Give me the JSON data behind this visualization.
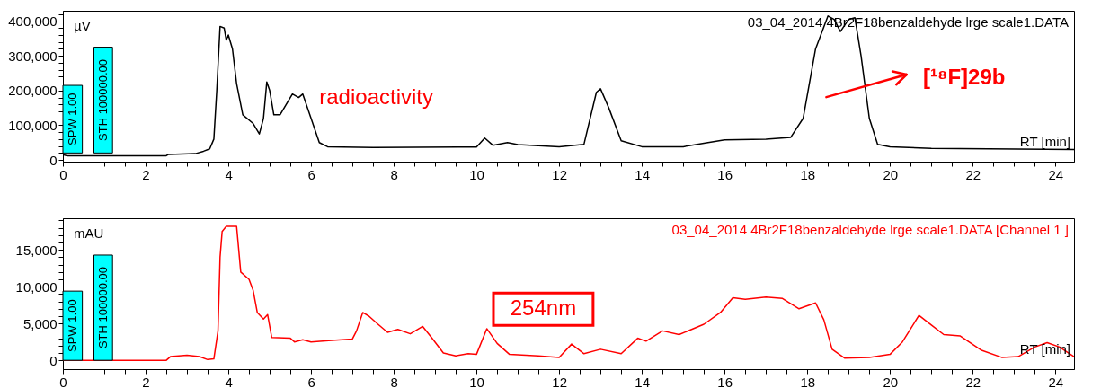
{
  "chart_data": [
    {
      "type": "line",
      "title": "03_04_2014 4Br2F18benzaldehyde lrge scale1.DATA",
      "xlabel": "RT [min]",
      "ylabel": "µV",
      "x": [
        0,
        0.1,
        2.5,
        2.55,
        3.2,
        3.4,
        3.55,
        3.65,
        3.72,
        3.8,
        3.9,
        3.95,
        4.0,
        4.1,
        4.2,
        4.35,
        4.6,
        4.75,
        4.85,
        4.93,
        5.0,
        5.1,
        5.25,
        5.55,
        5.7,
        5.8,
        6.0,
        6.2,
        6.4,
        7.5,
        10.0,
        10.2,
        10.4,
        10.75,
        11.0,
        12.0,
        12.6,
        12.9,
        13.0,
        13.2,
        13.5,
        14.0,
        15.0,
        15.5,
        16.0,
        17.0,
        17.6,
        17.9,
        18.2,
        18.5,
        18.65,
        18.8,
        19.0,
        19.15,
        19.3,
        19.5,
        19.7,
        20.0,
        21.0,
        24.45
      ],
      "series": [
        {
          "color": "#000000",
          "values": [
            15000,
            12000,
            12000,
            16000,
            18000,
            25000,
            32000,
            60000,
            200000,
            385000,
            380000,
            345000,
            360000,
            320000,
            220000,
            130000,
            105000,
            75000,
            120000,
            225000,
            200000,
            130000,
            130000,
            190000,
            180000,
            190000,
            120000,
            50000,
            38000,
            36000,
            37000,
            63000,
            42000,
            50000,
            44000,
            38000,
            45000,
            195000,
            205000,
            150000,
            55000,
            38000,
            38000,
            48000,
            58000,
            60000,
            65000,
            120000,
            320000,
            415000,
            405000,
            370000,
            405000,
            410000,
            300000,
            120000,
            45000,
            38000,
            33000,
            30000
          ]
        }
      ],
      "xlim": [
        0,
        24.45
      ],
      "ylim": [
        -5000,
        430000
      ],
      "xticks": [
        0,
        {
          "value": 0.5,
          "label": null
        },
        {
          "value": 1,
          "label": null
        },
        {
          "value": 1.5,
          "label": null
        },
        2,
        {
          "value": 2.5,
          "label": null
        },
        {
          "value": 3,
          "label": null
        },
        {
          "value": 3.5,
          "label": null
        },
        4,
        {
          "value": 4.5,
          "label": null
        },
        {
          "value": 5,
          "label": null
        },
        {
          "value": 5.5,
          "label": null
        },
        6,
        {
          "value": 6.5,
          "label": null
        },
        {
          "value": 7,
          "label": null
        },
        {
          "value": 7.5,
          "label": null
        },
        8,
        {
          "value": 8.5,
          "label": null
        },
        {
          "value": 9,
          "label": null
        },
        {
          "value": 9.5,
          "label": null
        },
        10,
        {
          "value": 10.5,
          "label": null
        },
        {
          "value": 11,
          "label": null
        },
        {
          "value": 11.5,
          "label": null
        },
        12,
        {
          "value": 12.5,
          "label": null
        },
        {
          "value": 13,
          "label": null
        },
        {
          "value": 13.5,
          "label": null
        },
        14,
        {
          "value": 14.5,
          "label": null
        },
        {
          "value": 15,
          "label": null
        },
        {
          "value": 15.5,
          "label": null
        },
        16,
        {
          "value": 16.5,
          "label": null
        },
        {
          "value": 17,
          "label": null
        },
        {
          "value": 17.5,
          "label": null
        },
        18,
        {
          "value": 18.5,
          "label": null
        },
        {
          "value": 19,
          "label": null
        },
        {
          "value": 19.5,
          "label": null
        },
        20,
        {
          "value": 20.5,
          "label": null
        },
        {
          "value": 21,
          "label": null
        },
        {
          "value": 21.5,
          "label": null
        },
        22,
        {
          "value": 22.5,
          "label": null
        },
        {
          "value": 23,
          "label": null
        },
        {
          "value": 23.5,
          "label": null
        },
        24
      ],
      "yticks": [
        0,
        {
          "value": 20000,
          "label": null
        },
        {
          "value": 40000,
          "label": null
        },
        {
          "value": 60000,
          "label": null
        },
        {
          "value": 80000,
          "label": null
        },
        {
          "value": 100000,
          "label": "100,000"
        },
        {
          "value": 120000,
          "label": null
        },
        {
          "value": 140000,
          "label": null
        },
        {
          "value": 160000,
          "label": null
        },
        {
          "value": 180000,
          "label": null
        },
        {
          "value": 200000,
          "label": "200,000"
        },
        {
          "value": 220000,
          "label": null
        },
        {
          "value": 240000,
          "label": null
        },
        {
          "value": 260000,
          "label": null
        },
        {
          "value": 280000,
          "label": null
        },
        {
          "value": 300000,
          "label": "300,000"
        },
        {
          "value": 320000,
          "label": null
        },
        {
          "value": 340000,
          "label": null
        },
        {
          "value": 360000,
          "label": null
        },
        {
          "value": 380000,
          "label": null
        },
        {
          "value": 400000,
          "label": "400,000"
        },
        {
          "value": 420000,
          "label": null
        }
      ],
      "annotations": [
        "SPW 1.00",
        "STH 100000.00",
        "radioactivity",
        "[¹⁸F]29b"
      ]
    },
    {
      "type": "line",
      "title": "03_04_2014 4Br2F18benzaldehyde lrge scale1.DATA [Channel 1    ]",
      "xlabel": "RT [min]",
      "ylabel": "mAU",
      "x": [
        0,
        2.5,
        2.6,
        3.0,
        3.3,
        3.5,
        3.65,
        3.75,
        3.8,
        3.85,
        3.95,
        4.2,
        4.3,
        4.5,
        4.6,
        4.7,
        4.85,
        4.95,
        5.05,
        5.5,
        5.6,
        5.8,
        6.0,
        6.5,
        7.0,
        7.1,
        7.25,
        7.4,
        7.6,
        7.85,
        8.1,
        8.4,
        8.7,
        8.9,
        9.2,
        9.5,
        9.8,
        10.0,
        10.25,
        10.5,
        10.8,
        11.5,
        12.0,
        12.3,
        12.6,
        13.0,
        13.5,
        13.9,
        14.1,
        14.5,
        14.9,
        15.5,
        15.9,
        16.2,
        16.5,
        17.0,
        17.4,
        17.8,
        18.2,
        18.4,
        18.6,
        18.9,
        19.5,
        20.0,
        20.3,
        20.7,
        21.0,
        21.3,
        21.7,
        22.2,
        22.7,
        23.1,
        23.5,
        23.8,
        24.1,
        24.45
      ],
      "series": [
        {
          "color": "#ff0000",
          "values": [
            0,
            0,
            500,
            700,
            500,
            100,
            200,
            4000,
            14000,
            17500,
            18200,
            18200,
            12000,
            11000,
            9500,
            6500,
            5600,
            6200,
            3100,
            3000,
            2500,
            2800,
            2500,
            2700,
            2900,
            4000,
            6500,
            6000,
            5000,
            3800,
            4200,
            3600,
            4600,
            3200,
            1000,
            600,
            900,
            800,
            4300,
            2300,
            800,
            600,
            400,
            2200,
            900,
            1500,
            900,
            3000,
            2600,
            4000,
            3500,
            4900,
            6500,
            8500,
            8300,
            8600,
            8400,
            7000,
            7800,
            5500,
            1500,
            300,
            400,
            800,
            2500,
            6100,
            4800,
            3500,
            3300,
            1400,
            400,
            500,
            1800,
            2400,
            1800,
            500
          ]
        }
      ],
      "xlim": [
        0,
        24.45
      ],
      "ylim": [
        -1200,
        19300
      ],
      "xticks": [
        0,
        {
          "value": 0.5,
          "label": null
        },
        {
          "value": 1,
          "label": null
        },
        {
          "value": 1.5,
          "label": null
        },
        2,
        {
          "value": 2.5,
          "label": null
        },
        {
          "value": 3,
          "label": null
        },
        {
          "value": 3.5,
          "label": null
        },
        4,
        {
          "value": 4.5,
          "label": null
        },
        {
          "value": 5,
          "label": null
        },
        {
          "value": 5.5,
          "label": null
        },
        6,
        {
          "value": 6.5,
          "label": null
        },
        {
          "value": 7,
          "label": null
        },
        {
          "value": 7.5,
          "label": null
        },
        8,
        {
          "value": 8.5,
          "label": null
        },
        {
          "value": 9,
          "label": null
        },
        {
          "value": 9.5,
          "label": null
        },
        10,
        {
          "value": 10.5,
          "label": null
        },
        {
          "value": 11,
          "label": null
        },
        {
          "value": 11.5,
          "label": null
        },
        12,
        {
          "value": 12.5,
          "label": null
        },
        {
          "value": 13,
          "label": null
        },
        {
          "value": 13.5,
          "label": null
        },
        14,
        {
          "value": 14.5,
          "label": null
        },
        {
          "value": 15,
          "label": null
        },
        {
          "value": 15.5,
          "label": null
        },
        16,
        {
          "value": 16.5,
          "label": null
        },
        {
          "value": 17,
          "label": null
        },
        {
          "value": 17.5,
          "label": null
        },
        18,
        {
          "value": 18.5,
          "label": null
        },
        {
          "value": 19,
          "label": null
        },
        {
          "value": 19.5,
          "label": null
        },
        20,
        {
          "value": 20.5,
          "label": null
        },
        {
          "value": 21,
          "label": null
        },
        {
          "value": 21.5,
          "label": null
        },
        22,
        {
          "value": 22.5,
          "label": null
        },
        {
          "value": 23,
          "label": null
        },
        {
          "value": 23.5,
          "label": null
        },
        24
      ],
      "yticks": [
        0,
        {
          "value": 1000,
          "label": null
        },
        {
          "value": 2000,
          "label": null
        },
        {
          "value": 3000,
          "label": null
        },
        {
          "value": 4000,
          "label": null
        },
        {
          "value": 5000,
          "label": "5,000"
        },
        {
          "value": 6000,
          "label": null
        },
        {
          "value": 7000,
          "label": null
        },
        {
          "value": 8000,
          "label": null
        },
        {
          "value": 9000,
          "label": null
        },
        {
          "value": 10000,
          "label": "10,000"
        },
        {
          "value": 11000,
          "label": null
        },
        {
          "value": 12000,
          "label": null
        },
        {
          "value": 13000,
          "label": null
        },
        {
          "value": 14000,
          "label": null
        },
        {
          "value": 15000,
          "label": "15,000"
        },
        {
          "value": 16000,
          "label": null
        },
        {
          "value": 17000,
          "label": null
        },
        {
          "value": 18000,
          "label": null
        },
        {
          "value": 19000,
          "label": null
        }
      ],
      "annotations": [
        "SPW 1.00",
        "STH 100000.00",
        "254nm"
      ]
    }
  ]
}
